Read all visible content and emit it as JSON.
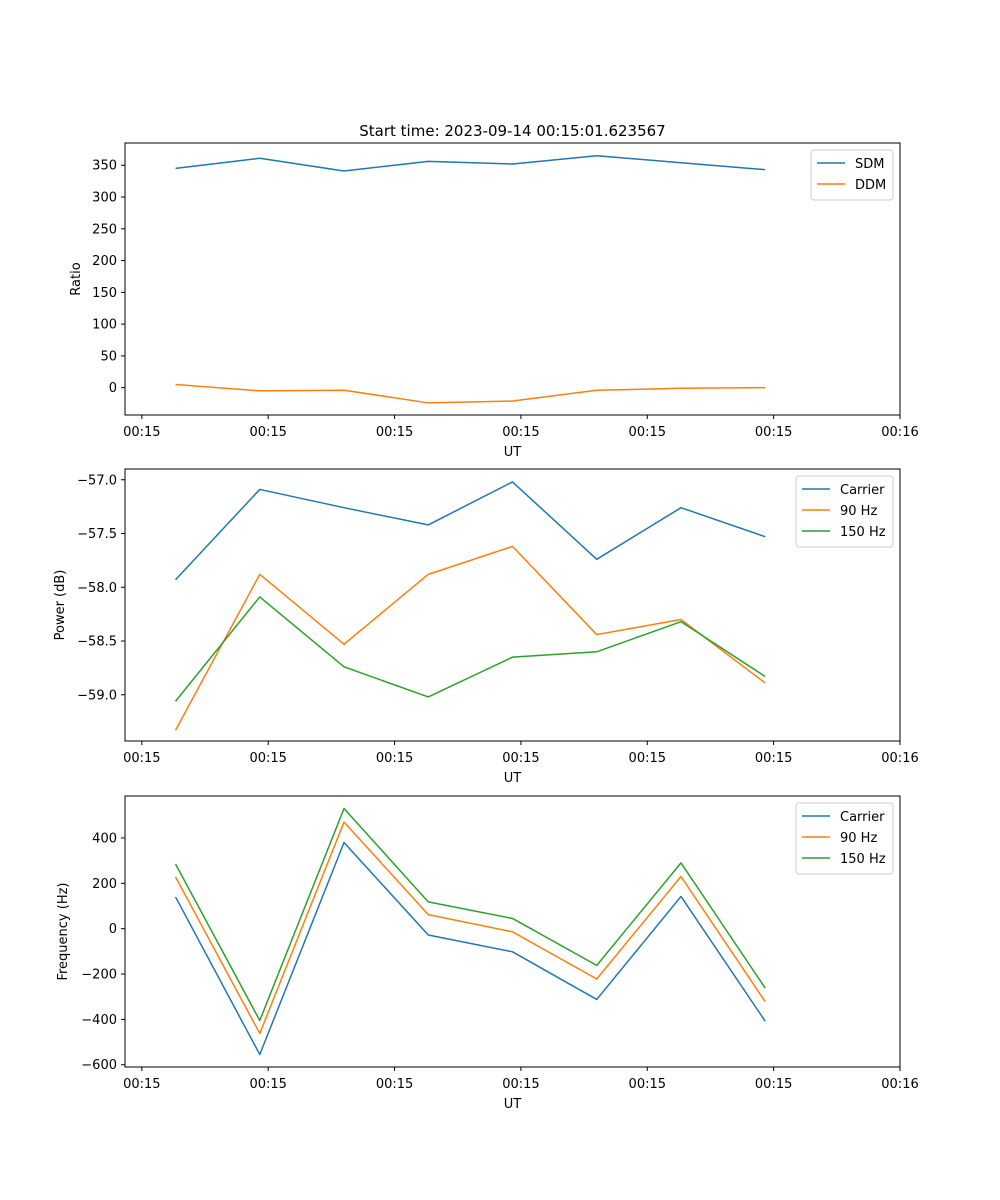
{
  "figure": {
    "title": "Start time: 2023-09-14 00:15:01.623567"
  },
  "colors": {
    "blue": "#1f77b4",
    "orange": "#ff7f0e",
    "green": "#2ca02c"
  },
  "chart_data": [
    {
      "type": "line",
      "title": "Start time: 2023-09-14 00:15:01.623567",
      "xlabel": "UT",
      "ylabel": "Ratio",
      "xlim": [
        -0.6,
        8.6
      ],
      "x": [
        0,
        1,
        2,
        3,
        4,
        5,
        6,
        7
      ],
      "xticks": [
        -0.4,
        1.1,
        2.6,
        4.1,
        5.6,
        7.1,
        8.6
      ],
      "xtick_labels": [
        "00:15",
        "00:15",
        "00:15",
        "00:15",
        "00:15",
        "00:15",
        "00:16"
      ],
      "ylim": [
        -43,
        385
      ],
      "yticks": [
        0,
        50,
        100,
        150,
        200,
        250,
        300,
        350
      ],
      "ytick_labels": [
        "0",
        "50",
        "100",
        "150",
        "200",
        "250",
        "300",
        "350"
      ],
      "legend": "top-right",
      "series": [
        {
          "name": "SDM",
          "color": "#1f77b4",
          "values": [
            345,
            361,
            341,
            356,
            352,
            365,
            354,
            343
          ]
        },
        {
          "name": "DDM",
          "color": "#ff7f0e",
          "values": [
            5,
            -5,
            -4,
            -24,
            -21,
            -4,
            -1,
            0
          ]
        }
      ]
    },
    {
      "type": "line",
      "title": "",
      "xlabel": "UT",
      "ylabel": "Power (dB)",
      "xlim": [
        -0.6,
        8.6
      ],
      "x": [
        0,
        1,
        2,
        3,
        4,
        5,
        6,
        7
      ],
      "xticks": [
        -0.4,
        1.1,
        2.6,
        4.1,
        5.6,
        7.1,
        8.6
      ],
      "xtick_labels": [
        "00:15",
        "00:15",
        "00:15",
        "00:15",
        "00:15",
        "00:15",
        "00:16"
      ],
      "ylim": [
        -59.43,
        -56.9
      ],
      "yticks": [
        -59.0,
        -58.5,
        -58.0,
        -57.5,
        -57.0
      ],
      "ytick_labels": [
        "−59.0",
        "−58.5",
        "−58.0",
        "−57.5",
        "−57.0"
      ],
      "legend": "top-right",
      "series": [
        {
          "name": "Carrier",
          "color": "#1f77b4",
          "values": [
            -57.93,
            -57.09,
            -57.26,
            -57.42,
            -57.02,
            -57.74,
            -57.26,
            -57.53
          ]
        },
        {
          "name": "90 Hz",
          "color": "#ff7f0e",
          "values": [
            -59.33,
            -57.88,
            -58.53,
            -57.88,
            -57.62,
            -58.44,
            -58.3,
            -58.89
          ]
        },
        {
          "name": "150 Hz",
          "color": "#2ca02c",
          "values": [
            -59.06,
            -58.09,
            -58.74,
            -59.02,
            -58.65,
            -58.6,
            -58.32,
            -58.83
          ]
        }
      ]
    },
    {
      "type": "line",
      "title": "",
      "xlabel": "UT",
      "ylabel": "Frequency (Hz)",
      "xlim": [
        -0.6,
        8.6
      ],
      "x": [
        0,
        1,
        2,
        3,
        4,
        5,
        6,
        7
      ],
      "xticks": [
        -0.4,
        1.1,
        2.6,
        4.1,
        5.6,
        7.1,
        8.6
      ],
      "xtick_labels": [
        "00:15",
        "00:15",
        "00:15",
        "00:15",
        "00:15",
        "00:15",
        "00:16"
      ],
      "ylim": [
        -610,
        585
      ],
      "yticks": [
        -600,
        -400,
        -200,
        0,
        200,
        400
      ],
      "ytick_labels": [
        "−600",
        "−400",
        "−200",
        "0",
        "200",
        "400"
      ],
      "legend": "top-right",
      "series": [
        {
          "name": "Carrier",
          "color": "#1f77b4",
          "values": [
            140,
            -555,
            380,
            -28,
            -102,
            -312,
            142,
            -408
          ]
        },
        {
          "name": "90 Hz",
          "color": "#ff7f0e",
          "values": [
            228,
            -462,
            470,
            62,
            -14,
            -222,
            230,
            -322
          ]
        },
        {
          "name": "150 Hz",
          "color": "#2ca02c",
          "values": [
            285,
            -405,
            530,
            118,
            45,
            -162,
            290,
            -262
          ]
        }
      ]
    }
  ]
}
